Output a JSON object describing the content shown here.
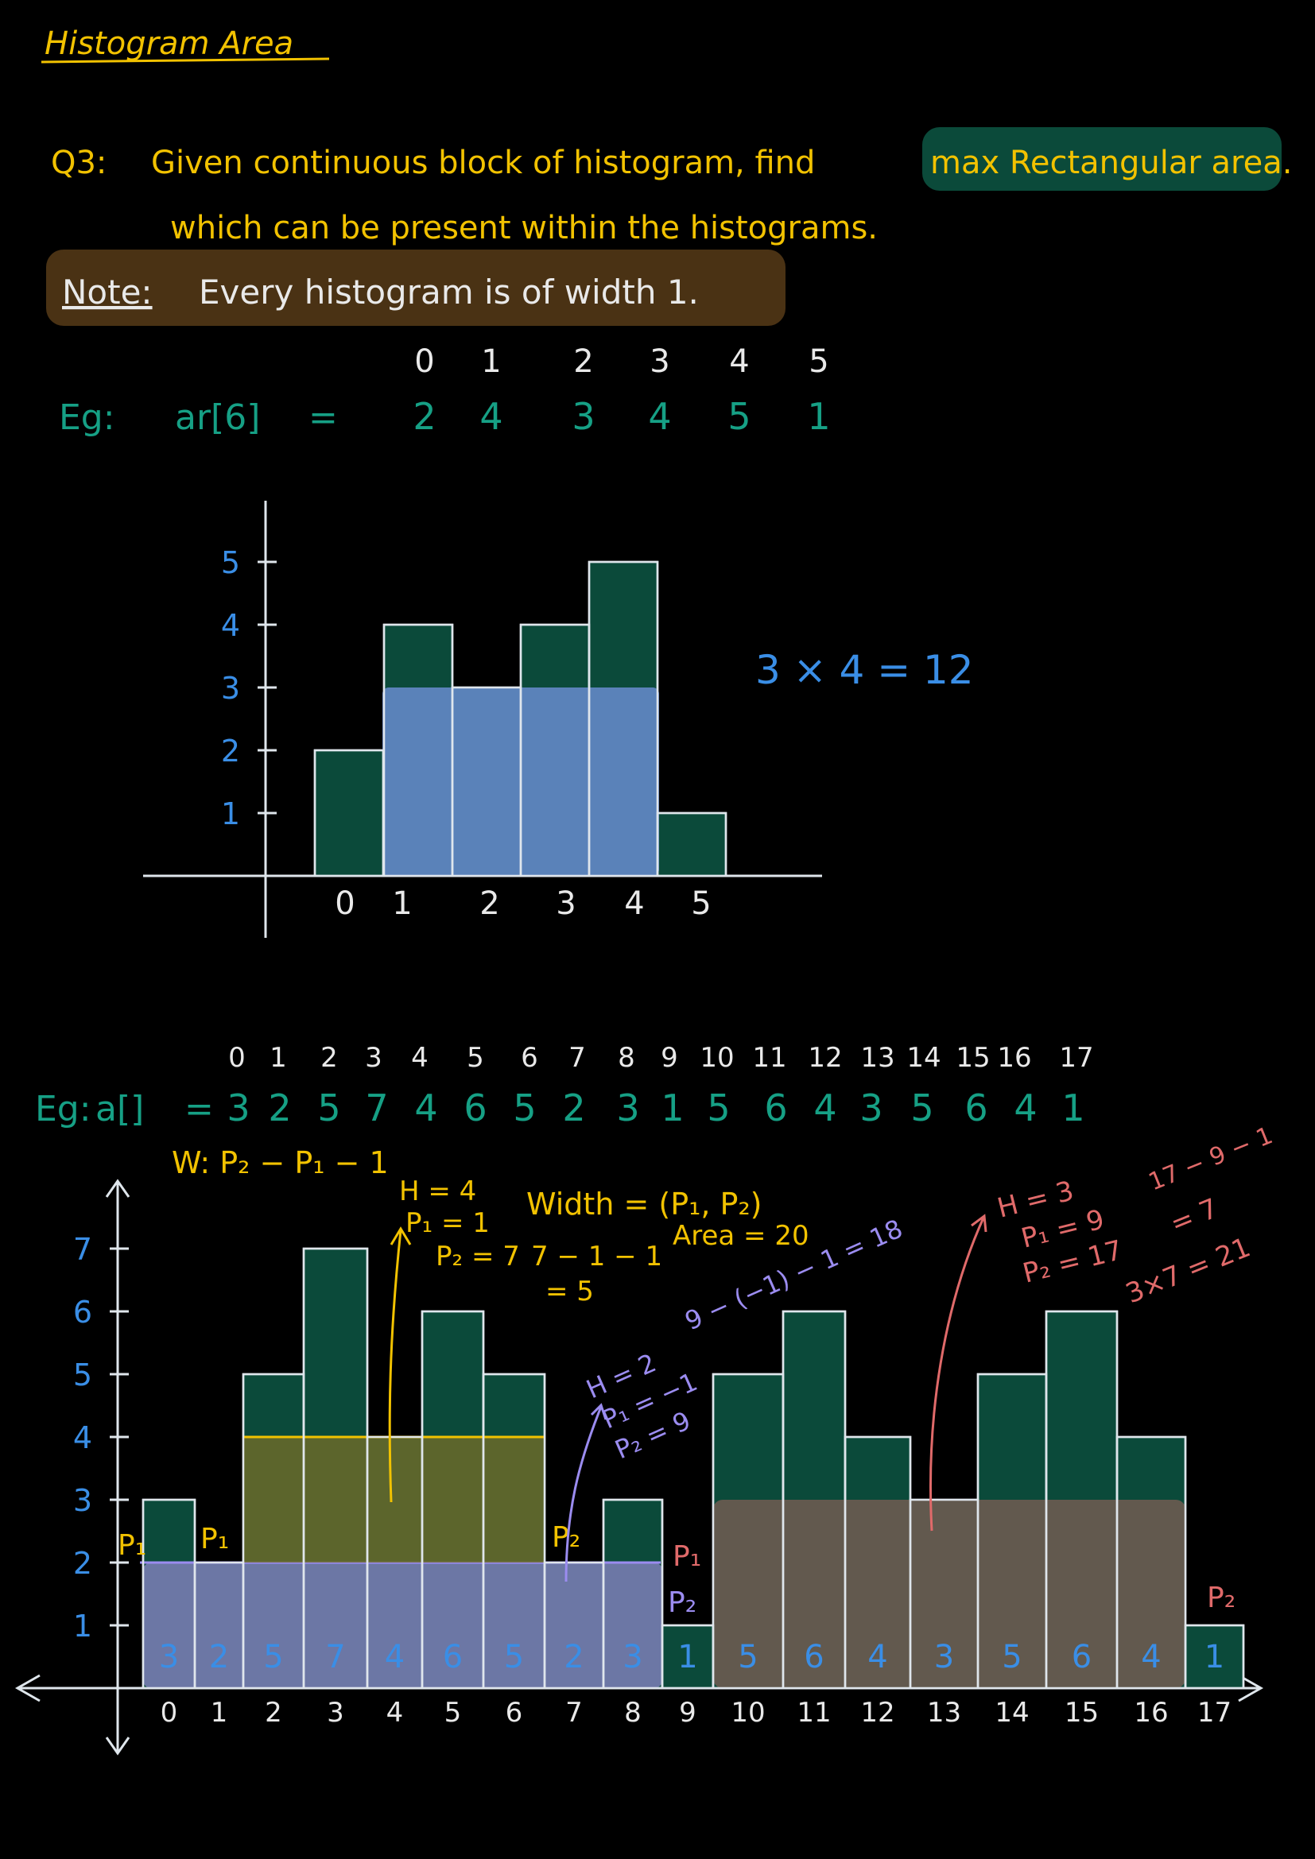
{
  "title": "Histogram Area",
  "question": {
    "label": "Q3:",
    "line1_a": "Given continuous block of histogram, find",
    "line1_highlight": "max Rectangular area.",
    "line2": "which can be present within the histograms."
  },
  "note": {
    "label": "Note:",
    "text": "Every histogram is of width 1."
  },
  "colors": {
    "yellow": "#f2c200",
    "green_text": "#16a085",
    "blue_text": "#3a8ee6",
    "bar_fill": "#0b4a3a",
    "bar_stroke": "#dfe6ec",
    "highlight_green": "#0b4a3a",
    "highlight_brown": "#4a3214",
    "overlay_blue": "#6b8fd6",
    "overlay_purple": "#8e87c9",
    "overlay_olive": "#6b6a2a",
    "overlay_brown": "#6a5a50",
    "purple_text": "#9b8cf0",
    "red_text": "#e06a6a"
  },
  "example1": {
    "label": "Eg:",
    "array_label": "ar[6]",
    "equals": "=",
    "indices": [
      "0",
      "1",
      "2",
      "3",
      "4",
      "5"
    ],
    "values": [
      2,
      4,
      3,
      4,
      5,
      1
    ],
    "y_ticks": [
      "1",
      "2",
      "3",
      "4",
      "5"
    ],
    "max_rect": {
      "height": 3,
      "from_index": 1,
      "to_index": 4
    },
    "area_text": "3 × 4 = 12"
  },
  "example2": {
    "label": "Eg:",
    "array_label": "a[]",
    "equals": "=",
    "indices": [
      "0",
      "1",
      "2",
      "3",
      "4",
      "5",
      "6",
      "7",
      "8",
      "9",
      "10",
      "11",
      "12",
      "13",
      "14",
      "15",
      "16",
      "17"
    ],
    "values": [
      3,
      2,
      5,
      7,
      4,
      6,
      5,
      2,
      3,
      1,
      5,
      6,
      4,
      3,
      5,
      6,
      4,
      1
    ],
    "y_ticks": [
      "1",
      "2",
      "3",
      "4",
      "5",
      "6",
      "7"
    ],
    "width_formula": "W: P₂ − P₁ − 1",
    "yellow_annotation": {
      "h": "H = 4",
      "p1": "P₁ = 1",
      "p2": "P₂ = 7",
      "width_label": "Width = (P₁, P₂)",
      "calc1": "7 − 1 − 1",
      "calc2": "= 5",
      "area": "Area = 20"
    },
    "purple_annotation": {
      "h": "H = 2",
      "p1": "P₁ = −1",
      "p2": "P₂ = 9",
      "calc": "9 − (−1) − 1 = 18"
    },
    "red_annotation": {
      "h": "H = 3",
      "p1": "P₁ = 9",
      "p2": "P₂ = 17",
      "calc1": "17 − 9 − 1",
      "calc2": "= 7",
      "area": "3×7 = 21"
    },
    "p_labels": {
      "p1": "P₁",
      "p2": "P₂"
    },
    "yellow_rect": {
      "height": 4,
      "from_index": 2,
      "to_index": 6
    },
    "purple_rect": {
      "height": 2,
      "from_index": 0,
      "to_index": 8
    },
    "red_rect": {
      "height": 3,
      "from_index": 10,
      "to_index": 16
    }
  }
}
